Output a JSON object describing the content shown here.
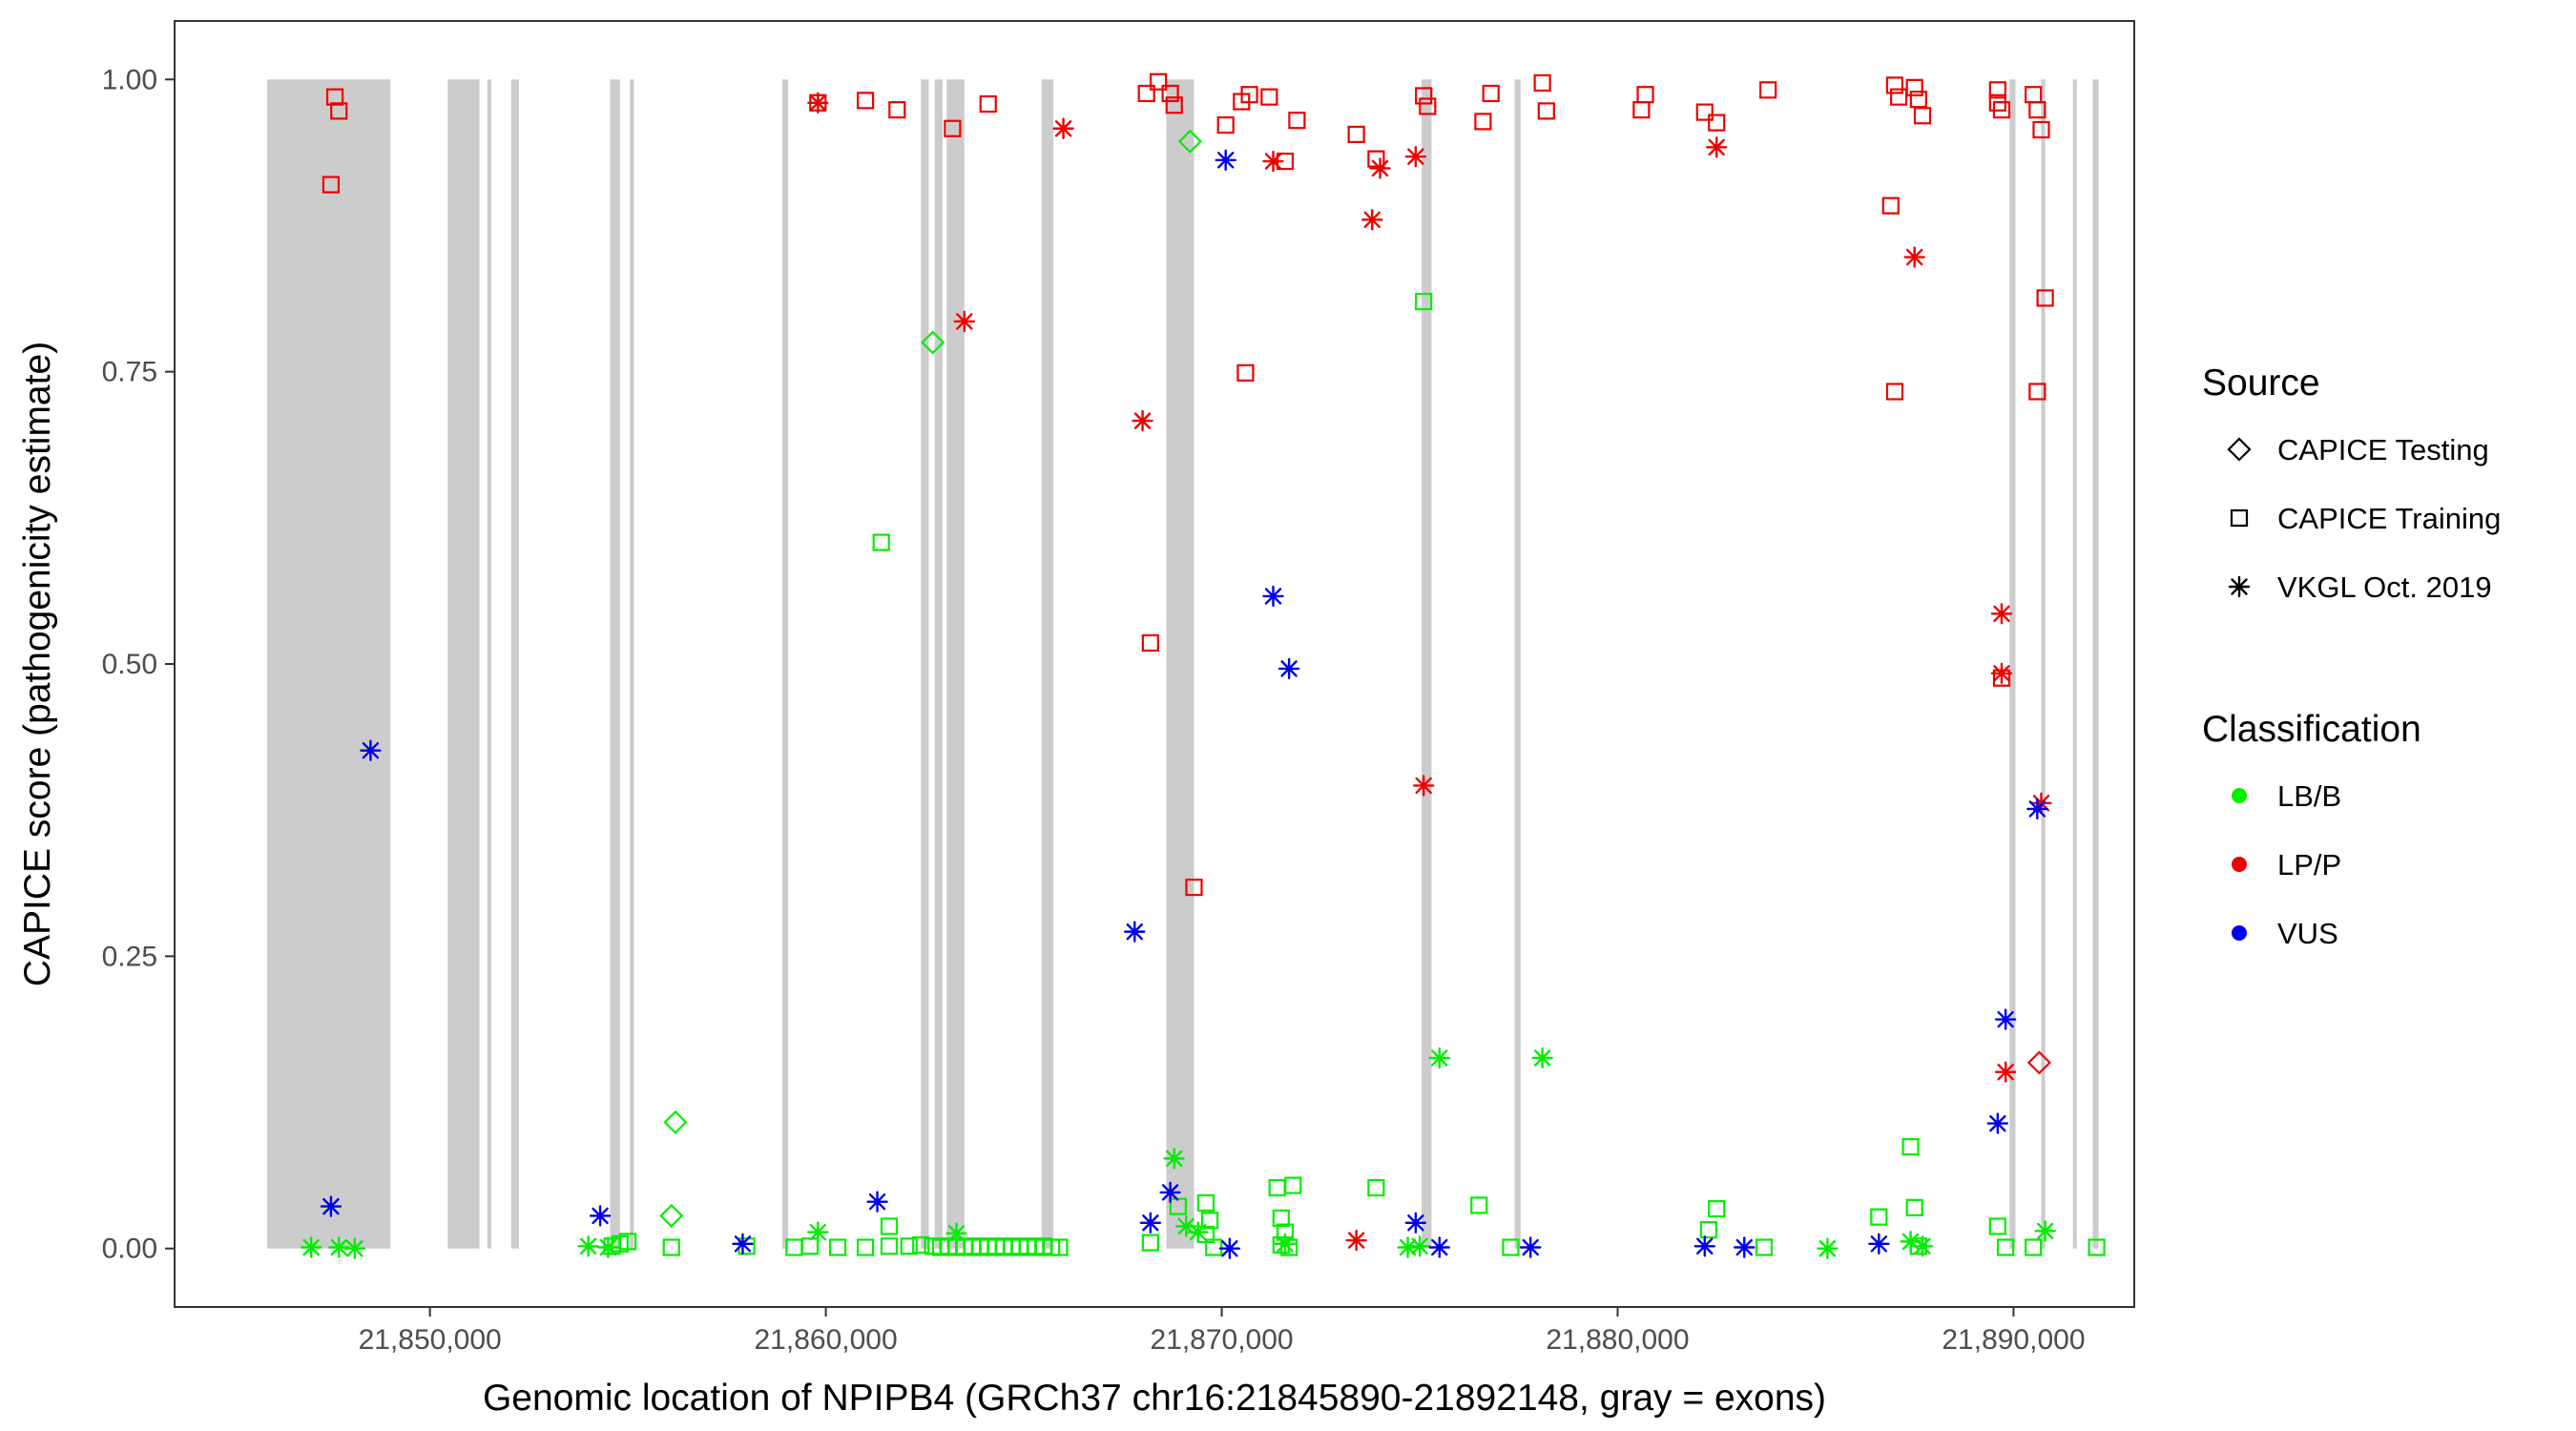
{
  "chart_data": {
    "type": "scatter",
    "title": "",
    "xlabel": "Genomic location of NPIPB4 (GRCh37 chr16:21845890-21892148, gray = exons)",
    "ylabel": "CAPICE score (pathogenicity estimate)",
    "xlim": [
      21843550,
      21893050
    ],
    "ylim": [
      -0.05,
      1.05
    ],
    "x_ticks": [
      21850000,
      21860000,
      21870000,
      21880000,
      21890000
    ],
    "x_tick_labels": [
      "21,850,000",
      "21,860,000",
      "21,870,000",
      "21,880,000",
      "21,890,000"
    ],
    "y_ticks": [
      0,
      0.25,
      0.5,
      0.75,
      1
    ],
    "y_tick_labels": [
      "0.00",
      "0.25",
      "0.50",
      "0.75",
      "1.00"
    ],
    "grid": false,
    "exon_color": "#cccccc",
    "exons": [
      [
        21845890,
        21849000
      ],
      [
        21850450,
        21851250
      ],
      [
        21851450,
        21851550
      ],
      [
        21852050,
        21852250
      ],
      [
        21854550,
        21854800
      ],
      [
        21855050,
        21855150
      ],
      [
        21858900,
        21859050
      ],
      [
        21862400,
        21862600
      ],
      [
        21862750,
        21862950
      ],
      [
        21863050,
        21863500
      ],
      [
        21865450,
        21865750
      ],
      [
        21868600,
        21869300
      ],
      [
        21875050,
        21875300
      ],
      [
        21877400,
        21877550
      ],
      [
        21889900,
        21890050
      ],
      [
        21890700,
        21890800
      ],
      [
        21891500,
        21891600
      ],
      [
        21892000,
        21892148
      ]
    ],
    "legend": {
      "position": "right",
      "source_title": "Source",
      "source_items": [
        {
          "label": "CAPICE Testing",
          "shape": "diamond"
        },
        {
          "label": "CAPICE Training",
          "shape": "square"
        },
        {
          "label": "VKGL Oct. 2019",
          "shape": "asterisk"
        }
      ],
      "class_title": "Classification",
      "class_items": [
        {
          "label": "LB/B",
          "color": "#00ee00"
        },
        {
          "label": "LP/P",
          "color": "#ee0000"
        },
        {
          "label": "VUS",
          "color": "#0000ee"
        }
      ]
    },
    "series": [
      {
        "name": "CAPICE Testing",
        "class": "LB/B",
        "shape": "diamond",
        "color": "#00ee00",
        "x": [
          21856200,
          21856100,
          21862700,
          21869200
        ],
        "y": [
          0.108,
          0.028,
          0.775,
          0.947
        ]
      },
      {
        "name": "CAPICE Testing",
        "class": "LP/P",
        "shape": "diamond",
        "color": "#ee0000",
        "x": [
          21890650
        ],
        "y": [
          0.159
        ]
      },
      {
        "name": "CAPICE Training",
        "class": "LP/P",
        "shape": "square",
        "color": "#ee0000",
        "x": [
          21847600,
          21847700,
          21847500,
          21859800,
          21861000,
          21861800,
          21863200,
          21864100,
          21868400,
          21868700,
          21868800,
          21868200,
          21869300,
          21868100,
          21870100,
          21870500,
          21870700,
          21871200,
          21871600,
          21871900,
          21870600,
          21873400,
          21873900,
          21875100,
          21875200,
          21876600,
          21876800,
          21878100,
          21878200,
          21880700,
          21880600,
          21882200,
          21882500,
          21883800,
          21887000,
          21887100,
          21887600,
          21887700,
          21887500,
          21886900,
          21887000,
          21889600,
          21889700,
          21890500,
          21890600,
          21889700,
          21890700,
          21890800,
          21890600,
          21889600
        ],
        "y": [
          0.985,
          0.973,
          0.91,
          0.98,
          0.982,
          0.974,
          0.958,
          0.979,
          0.998,
          0.988,
          0.978,
          0.518,
          0.309,
          0.988,
          0.961,
          0.981,
          0.987,
          0.985,
          0.93,
          0.965,
          0.749,
          0.953,
          0.932,
          0.986,
          0.977,
          0.964,
          0.988,
          0.997,
          0.973,
          0.987,
          0.974,
          0.972,
          0.963,
          0.991,
          0.995,
          0.985,
          0.983,
          0.969,
          0.993,
          0.892,
          0.733,
          0.991,
          0.974,
          0.987,
          0.974,
          0.488,
          0.957,
          0.813,
          0.733,
          0.98
        ]
      },
      {
        "name": "CAPICE Training",
        "class": "LB/B",
        "shape": "square",
        "color": "#00ee00",
        "x": [
          21854600,
          21854800,
          21855000,
          21856100,
          21858000,
          21859200,
          21859600,
          21860300,
          21861000,
          21861400,
          21861600,
          21861600,
          21862100,
          21862400,
          21862700,
          21862900,
          21863100,
          21863300,
          21863500,
          21863700,
          21863900,
          21864100,
          21864300,
          21864500,
          21864700,
          21864900,
          21865100,
          21865300,
          21865500,
          21865700,
          21865900,
          21868200,
          21868900,
          21869600,
          21869700,
          21869800,
          21869600,
          21871400,
          21871500,
          21871600,
          21871800,
          21871500,
          21871700,
          21873900,
          21875100,
          21876500,
          21877300,
          21882300,
          21882500,
          21883700,
          21886600,
          21887400,
          21887500,
          21887600,
          21889600,
          21889800,
          21890500,
          21892100
        ],
        "y": [
          0.002,
          0.004,
          0.006,
          0.001,
          0.002,
          0.001,
          0.002,
          0.001,
          0.001,
          0.604,
          0.019,
          0.002,
          0.002,
          0.003,
          0.002,
          0.001,
          0.002,
          0.001,
          0.002,
          0.001,
          0.002,
          0.001,
          0.002,
          0.001,
          0.002,
          0.001,
          0.002,
          0.001,
          0.002,
          0.001,
          0.001,
          0.005,
          0.036,
          0.039,
          0.024,
          0.001,
          0.012,
          0.052,
          0.026,
          0.014,
          0.054,
          0.003,
          0.001,
          0.052,
          0.81,
          0.037,
          0.001,
          0.016,
          0.034,
          0.001,
          0.027,
          0.087,
          0.035,
          0.002,
          0.019,
          0.001,
          0.001,
          0.001
        ]
      },
      {
        "name": "VKGL Oct. 2019",
        "class": "LB/B",
        "shape": "asterisk",
        "color": "#00ee00",
        "x": [
          21847000,
          21847700,
          21848100,
          21854000,
          21854500,
          21859800,
          21863300,
          21868800,
          21869100,
          21869400,
          21871600,
          21874700,
          21875000,
          21875500,
          21878100,
          21885300,
          21887400,
          21887700,
          21890800
        ],
        "y": [
          0.001,
          0.001,
          0.0,
          0.002,
          0.001,
          0.014,
          0.013,
          0.077,
          0.019,
          0.014,
          0.004,
          0.001,
          0.002,
          0.163,
          0.163,
          0.0,
          0.006,
          0.002,
          0.015
        ]
      },
      {
        "name": "VKGL Oct. 2019",
        "class": "LP/P",
        "shape": "asterisk",
        "color": "#ee0000",
        "x": [
          21859800,
          21863500,
          21866000,
          21868000,
          21871300,
          21873400,
          21873800,
          21874000,
          21874900,
          21875100,
          21882500,
          21887500,
          21889700,
          21889700,
          21889800,
          21890700
        ],
        "y": [
          0.98,
          0.793,
          0.958,
          0.708,
          0.93,
          0.007,
          0.88,
          0.924,
          0.934,
          0.396,
          0.942,
          0.848,
          0.543,
          0.492,
          0.151,
          0.381
        ]
      },
      {
        "name": "VKGL Oct. 2019",
        "class": "VUS",
        "shape": "asterisk",
        "color": "#0000ee",
        "x": [
          21847500,
          21848500,
          21854300,
          21857900,
          21861300,
          21867800,
          21868200,
          21868700,
          21870100,
          21870200,
          21871300,
          21871700,
          21874900,
          21875500,
          21877800,
          21882200,
          21883200,
          21886600,
          21889600,
          21889800,
          21890600
        ],
        "y": [
          0.036,
          0.426,
          0.028,
          0.004,
          0.04,
          0.271,
          0.022,
          0.048,
          0.931,
          0.0,
          0.558,
          0.496,
          0.022,
          0.001,
          0.001,
          0.002,
          0.001,
          0.004,
          0.107,
          0.196,
          0.376
        ]
      }
    ]
  }
}
